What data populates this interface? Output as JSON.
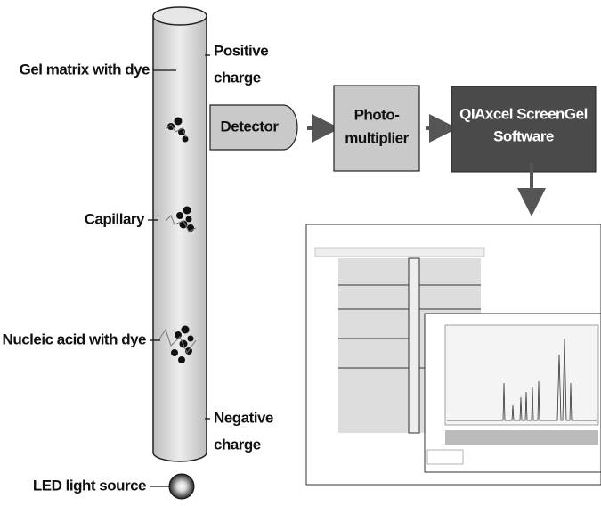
{
  "labels": {
    "gel_matrix": "Gel matrix with dye",
    "positive_charge": [
      "Positive",
      "charge"
    ],
    "capillary": "Capillary",
    "nucleic_acid": "Nucleic acid with dye",
    "negative_charge": [
      "Negative",
      "charge"
    ],
    "led": "LED light source"
  },
  "flow": {
    "detector": "Detector",
    "photomultiplier": [
      "Photo-",
      "multiplier"
    ],
    "software": [
      "QIAxcel ScreenGel",
      "Software"
    ]
  }
}
